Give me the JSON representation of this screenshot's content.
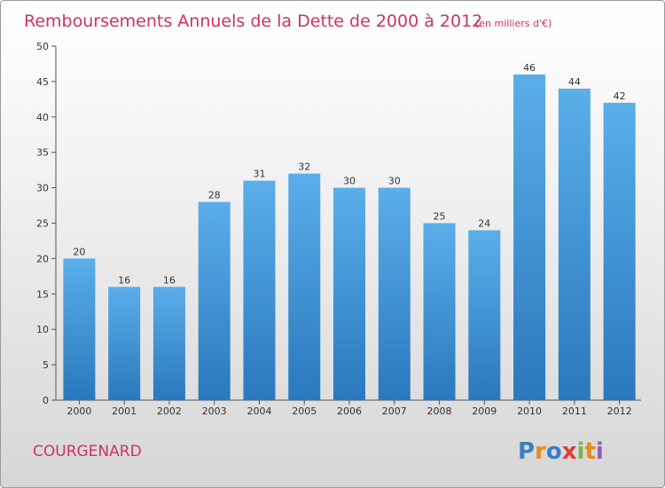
{
  "chart_data": {
    "type": "bar",
    "title": "Remboursements Annuels de la Dette de 2000 à 2012",
    "subtitle": "(en milliers d'€)",
    "categories": [
      "2000",
      "2001",
      "2002",
      "2003",
      "2004",
      "2005",
      "2006",
      "2007",
      "2008",
      "2009",
      "2010",
      "2011",
      "2012"
    ],
    "values": [
      20,
      16,
      16,
      28,
      31,
      32,
      30,
      30,
      25,
      24,
      46,
      44,
      42
    ],
    "ylim": [
      0,
      50
    ],
    "yticks": [
      "0",
      "5",
      "10",
      "15",
      "20",
      "25",
      "30",
      "35",
      "40",
      "45",
      "50"
    ],
    "xlabel": "",
    "ylabel": "",
    "grid": false,
    "bar_color": "#3d8fd6"
  },
  "footer": {
    "commune": "COURGENARD",
    "logo": {
      "letters": [
        "P",
        "r",
        "o",
        "x",
        "i",
        "t",
        "i"
      ],
      "colors": [
        "#3b7fc4",
        "#e88a1a",
        "#3b7fc4",
        "#e23b3b",
        "#7ab648",
        "#e88a1a",
        "#9b59b6"
      ]
    }
  }
}
